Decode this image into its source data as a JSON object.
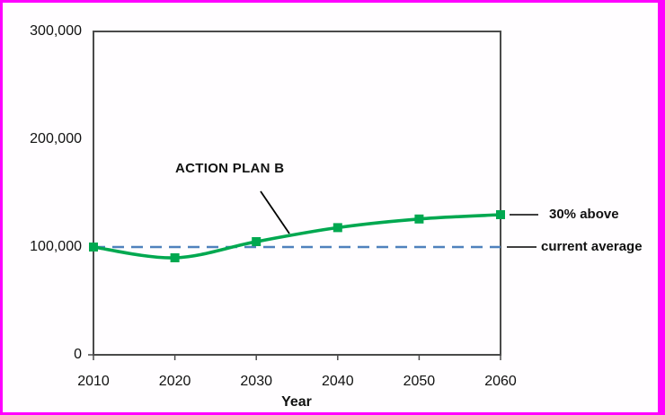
{
  "frame": {
    "border_color": "#FF00FF",
    "background_color": "#FFFFFF"
  },
  "chart_data": {
    "type": "line",
    "title": "",
    "xlabel": "Year",
    "ylabel": "",
    "x": [
      2010,
      2020,
      2030,
      2040,
      2050,
      2060
    ],
    "xlim": [
      2010,
      2060
    ],
    "ylim": [
      0,
      300000
    ],
    "xtick_labels": [
      "2010",
      "2020",
      "2030",
      "2040",
      "2050",
      "2060"
    ],
    "ytick_values": [
      0,
      100000,
      200000,
      300000
    ],
    "ytick_labels": [
      "0",
      "100,000",
      "200,000",
      "300,000"
    ],
    "grid": false,
    "legend_position": "none",
    "series": [
      {
        "name": "ACTION PLAN B",
        "line_style": "solid-smooth",
        "marker": "square",
        "color": "#00A850",
        "values": [
          100000,
          90000,
          105000,
          118000,
          126000,
          130000
        ]
      },
      {
        "name": "current average",
        "line_style": "dashed",
        "marker": "none",
        "color": "#4F81BD",
        "reference_value": 100000
      }
    ],
    "annotations": [
      {
        "id": "series-label",
        "text": "ACTION PLAN B",
        "points_to": "curve between 2030 and 2040"
      },
      {
        "id": "end-label",
        "text": "30% above",
        "attached_to": "last point of green series"
      },
      {
        "id": "reference-label",
        "text": "current average",
        "attached_to": "dashed reference line at 100,000"
      }
    ],
    "axis_color": "#4A4A4A",
    "annotation_line_color": "#000000"
  }
}
